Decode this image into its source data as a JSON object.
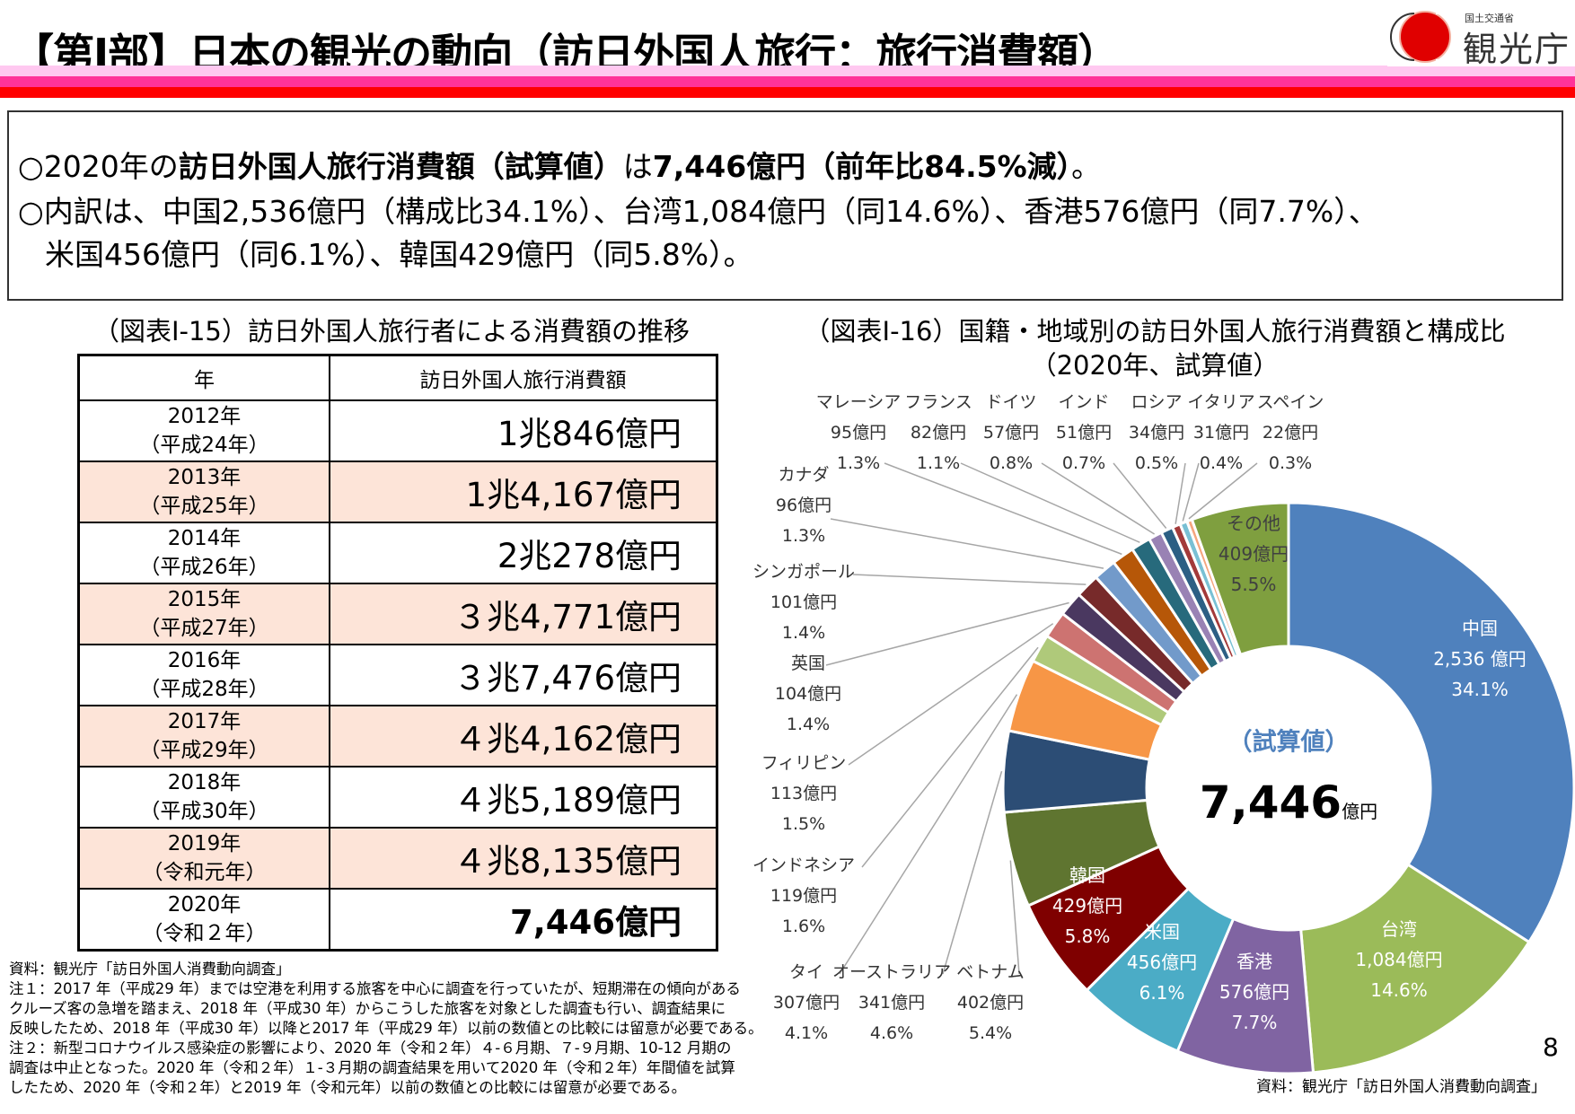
{
  "header": {
    "title": "【第Ⅰ部】日本の観光の動向（訪日外国人旅行：旅行消費額）",
    "logo_text": "観光庁",
    "logo_subtext": "国土交通省",
    "band_colors": [
      "#ffc8f0",
      "#ff3399",
      "#ff0000"
    ]
  },
  "summary": {
    "line1": {
      "a": "○2020年の",
      "b": "訪日外国人旅行消費額（試算値）",
      "c": "は",
      "d": "7,446億円（前年比84.5%減）",
      "e": "。"
    },
    "line2": "○内訳は、中国2,536億円（構成比34.1%）、台湾1,084億円（同14.6%）、香港576億円（同7.7%）、",
    "line3": "米国456億円（同6.1%）、韓国429億円（同5.8%）。"
  },
  "table": {
    "title": "（図表Ⅰ-15）訪日外国人旅行者による消費額の推移",
    "headers": [
      "年",
      "訪日外国人旅行消費額"
    ],
    "rows": [
      {
        "year": "2012年",
        "era": "（平成24年）",
        "value": "1兆846億円"
      },
      {
        "year": "2013年",
        "era": "（平成25年）",
        "value": "1兆4,167億円"
      },
      {
        "year": "2014年",
        "era": "（平成26年）",
        "value": "2兆278億円"
      },
      {
        "year": "2015年",
        "era": "（平成27年）",
        "value": "３兆4,771億円"
      },
      {
        "year": "2016年",
        "era": "（平成28年）",
        "value": "３兆7,476億円"
      },
      {
        "year": "2017年",
        "era": "（平成29年）",
        "value": "４兆4,162億円"
      },
      {
        "year": "2018年",
        "era": "（平成30年）",
        "value": "４兆5,189億円"
      },
      {
        "year": "2019年",
        "era": "（令和元年）",
        "value": "４兆8,135億円"
      },
      {
        "year": "2020年",
        "era": "（令和２年）",
        "value": "7,446億円"
      }
    ],
    "highlight_color": "#fde4d8"
  },
  "notes": [
    "資料：観光庁「訪日外国人消費動向調査」",
    "注１：2017 年（平成29 年）までは空港を利用する旅客を中心に調査を行っていたが、短期滞在の傾向がある",
    "クルーズ客の急増を踏まえ、2018 年（平成30 年）からこうした旅客を対象とした調査も行い、調査結果に",
    "反映したため、2018 年（平成30 年）以降と2017 年（平成29 年）以前の数値との比較には留意が必要である。",
    "注２：新型コロナウイルス感染症の影響により、2020 年（令和２年）４-６月期、７-９月期、10-12 月期の",
    "調査は中止となった。2020 年（令和２年）１-３月期の調査結果を用いて2020 年（令和２年）年間値を試算",
    "したため、2020 年（令和２年）と2019 年（令和元年）以前の数値との比較には留意が必要である。"
  ],
  "chart_data": {
    "type": "pie",
    "donut": true,
    "title": "（図表Ⅰ-16）国籍・地域別の訪日外国人旅行消費額と構成比",
    "subtitle": "（2020年、試算値）",
    "center_label": "（試算値）",
    "center_value": "7,446",
    "center_unit": "億円",
    "slices": [
      {
        "name": "中国",
        "amount": "2,536 億円",
        "value": 2536,
        "pct": "34.1%",
        "color": "#4f81bd"
      },
      {
        "name": "台湾",
        "amount": "1,084億円",
        "value": 1084,
        "pct": "14.6%",
        "color": "#9bbb59"
      },
      {
        "name": "香港",
        "amount": "576億円",
        "value": 576,
        "pct": "7.7%",
        "color": "#8064a2"
      },
      {
        "name": "米国",
        "amount": "456億円",
        "value": 456,
        "pct": "6.1%",
        "color": "#4bacc6"
      },
      {
        "name": "韓国",
        "amount": "429億円",
        "value": 429,
        "pct": "5.8%",
        "color": "#7f0000"
      },
      {
        "name": "ベトナム",
        "amount": "402億円",
        "value": 402,
        "pct": "5.4%",
        "color": "#5f7530"
      },
      {
        "name": "オーストラリア",
        "amount": "341億円",
        "value": 341,
        "pct": "4.6%",
        "color": "#2c4d75"
      },
      {
        "name": "タイ",
        "amount": "307億円",
        "value": 307,
        "pct": "4.1%",
        "color": "#f79646"
      },
      {
        "name": "インドネシア",
        "amount": "119億円",
        "value": 119,
        "pct": "1.6%",
        "color": "#afc97a"
      },
      {
        "name": "フィリピン",
        "amount": "113億円",
        "value": 113,
        "pct": "1.5%",
        "color": "#cd7371"
      },
      {
        "name": "英国",
        "amount": "104億円",
        "value": 104,
        "pct": "1.4%",
        "color": "#4a3860"
      },
      {
        "name": "シンガポール",
        "amount": "101億円",
        "value": 101,
        "pct": "1.4%",
        "color": "#772a2a"
      },
      {
        "name": "カナダ",
        "amount": "96億円",
        "value": 96,
        "pct": "1.3%",
        "color": "#729aca"
      },
      {
        "name": "マレーシア",
        "amount": "95億円",
        "value": 95,
        "pct": "1.3%",
        "color": "#b65708"
      },
      {
        "name": "フランス",
        "amount": "82億円",
        "value": 82,
        "pct": "1.1%",
        "color": "#276a7c"
      },
      {
        "name": "ドイツ",
        "amount": "57億円",
        "value": 57,
        "pct": "0.8%",
        "color": "#9982b4"
      },
      {
        "name": "インド",
        "amount": "51億円",
        "value": 51,
        "pct": "0.7%",
        "color": "#2c5f84"
      },
      {
        "name": "ロシア",
        "amount": "34億円",
        "value": 34,
        "pct": "0.5%",
        "color": "#a33a3a"
      },
      {
        "name": "イタリア",
        "amount": "31億円",
        "value": 31,
        "pct": "0.4%",
        "color": "#79c0d4"
      },
      {
        "name": "スペイン",
        "amount": "22億円",
        "value": 22,
        "pct": "0.3%",
        "color": "#f5a57e"
      },
      {
        "name": "その他",
        "amount": "409億円",
        "value": 409,
        "pct": "5.5%",
        "color": "#7f9f3f"
      }
    ],
    "source": "資料：観光庁「訪日外国人消費動向調査」"
  },
  "page_number": "8"
}
